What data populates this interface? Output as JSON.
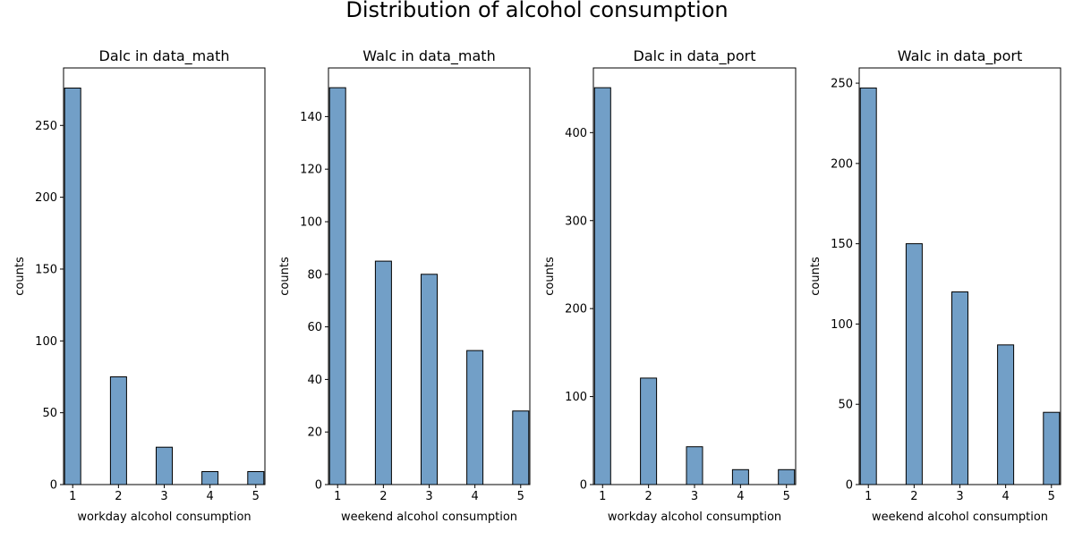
{
  "figure": {
    "title": "Distribution of alcohol consumption"
  },
  "style": {
    "bar_fill": "#729fc7",
    "bar_edge": "#000000"
  },
  "chart_data": [
    {
      "type": "bar",
      "title": "Dalc in data_math",
      "xlabel": "workday alcohol consumption",
      "ylabel": "counts",
      "categories": [
        "1",
        "2",
        "3",
        "4",
        "5"
      ],
      "values": [
        276,
        75,
        26,
        9,
        9
      ],
      "xlim": [
        0.8,
        5.2
      ],
      "ylim": [
        0,
        290
      ],
      "xticks": [
        1,
        2,
        3,
        4,
        5
      ],
      "yticks": [
        0,
        50,
        100,
        150,
        200,
        250
      ],
      "grid": false
    },
    {
      "type": "bar",
      "title": "Walc in data_math",
      "xlabel": "weekend alcohol consumption",
      "ylabel": "counts",
      "categories": [
        "1",
        "2",
        "3",
        "4",
        "5"
      ],
      "values": [
        151,
        85,
        80,
        51,
        28
      ],
      "xlim": [
        0.8,
        5.2
      ],
      "ylim": [
        0,
        158.5
      ],
      "xticks": [
        1,
        2,
        3,
        4,
        5
      ],
      "yticks": [
        0,
        20,
        40,
        60,
        80,
        100,
        120,
        140
      ],
      "grid": false
    },
    {
      "type": "bar",
      "title": "Dalc in data_port",
      "xlabel": "workday alcohol consumption",
      "ylabel": "counts",
      "categories": [
        "1",
        "2",
        "3",
        "4",
        "5"
      ],
      "values": [
        451,
        121,
        43,
        17,
        17
      ],
      "xlim": [
        0.8,
        5.2
      ],
      "ylim": [
        0,
        473.5
      ],
      "xticks": [
        1,
        2,
        3,
        4,
        5
      ],
      "yticks": [
        0,
        100,
        200,
        300,
        400
      ],
      "grid": false
    },
    {
      "type": "bar",
      "title": "Walc in data_port",
      "xlabel": "weekend alcohol consumption",
      "ylabel": "counts",
      "categories": [
        "1",
        "2",
        "3",
        "4",
        "5"
      ],
      "values": [
        247,
        150,
        120,
        87,
        45
      ],
      "xlim": [
        0.8,
        5.2
      ],
      "ylim": [
        0,
        259.5
      ],
      "xticks": [
        1,
        2,
        3,
        4,
        5
      ],
      "yticks": [
        0,
        50,
        100,
        150,
        200,
        250
      ],
      "grid": false
    }
  ]
}
